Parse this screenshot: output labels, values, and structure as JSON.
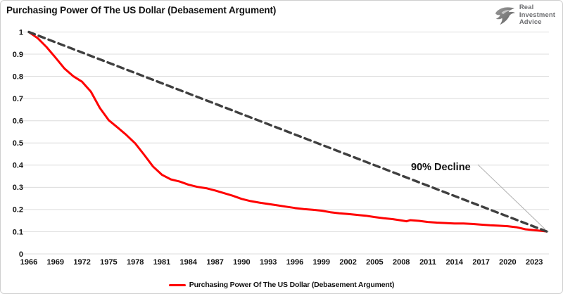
{
  "header": {
    "title": "Purchasing Power Of The US Dollar (Debasement Argument)",
    "logo_lines": [
      "Real",
      "Investment",
      "Advice"
    ]
  },
  "colors": {
    "series_red": "#ff0000",
    "dashed_gray": "#3f3f3f",
    "gridline": "#dcdcdc",
    "leader_line": "#b3b3b3",
    "text": "#111111",
    "logo_gray": "#6d6e71"
  },
  "chart_data": {
    "type": "line",
    "title": "Purchasing Power Of The US Dollar (Debasement Argument)",
    "xlabel": "",
    "ylabel": "",
    "xlim": [
      1966,
      2024.5
    ],
    "ylim": [
      0,
      1
    ],
    "grid": true,
    "x_ticks": [
      1966,
      1969,
      1972,
      1975,
      1978,
      1981,
      1984,
      1987,
      1990,
      1993,
      1996,
      1999,
      2002,
      2005,
      2008,
      2011,
      2014,
      2017,
      2020,
      2023
    ],
    "x_tick_labels": [
      "1966",
      "1969",
      "1972",
      "1975",
      "1978",
      "1981",
      "1984",
      "1987",
      "1990",
      "1993",
      "1996",
      "1999",
      "2002",
      "2005",
      "2008",
      "2011",
      "2014",
      "2017",
      "2020",
      "2023"
    ],
    "y_ticks": [
      1,
      0.9,
      0.8,
      0.7,
      0.6,
      0.5,
      0.4,
      0.3,
      0.2,
      0.1,
      0
    ],
    "y_tick_labels": [
      "1",
      "0.9",
      "0.8",
      "0.7",
      "0.6",
      "0.5",
      "0.4",
      "0.3",
      "0.2",
      "0.1",
      "0"
    ],
    "series": [
      {
        "name": "Purchasing Power Of The US Dollar (Debasement Argument)",
        "color": "#ff0000",
        "width": 3,
        "dash": null,
        "x": [
          1966,
          1967,
          1968,
          1969,
          1970,
          1971,
          1972,
          1973,
          1974,
          1975,
          1976,
          1977,
          1978,
          1979,
          1980,
          1981,
          1982,
          1983,
          1984,
          1985,
          1986,
          1987,
          1988,
          1989,
          1990,
          1991,
          1992,
          1993,
          1994,
          1995,
          1996,
          1997,
          1998,
          1999,
          2000,
          2001,
          2002,
          2003,
          2004,
          2005,
          2006,
          2007,
          2008,
          2008.6,
          2009,
          2010,
          2011,
          2012,
          2013,
          2014,
          2015,
          2016,
          2017,
          2018,
          2019,
          2020,
          2021,
          2022,
          2023,
          2024,
          2024.4
        ],
        "values": [
          1.0,
          0.972,
          0.932,
          0.885,
          0.836,
          0.801,
          0.776,
          0.731,
          0.658,
          0.603,
          0.57,
          0.536,
          0.498,
          0.447,
          0.394,
          0.357,
          0.336,
          0.326,
          0.312,
          0.302,
          0.296,
          0.286,
          0.274,
          0.262,
          0.248,
          0.238,
          0.231,
          0.225,
          0.219,
          0.213,
          0.207,
          0.202,
          0.199,
          0.195,
          0.188,
          0.183,
          0.18,
          0.176,
          0.172,
          0.166,
          0.161,
          0.157,
          0.151,
          0.147,
          0.152,
          0.149,
          0.144,
          0.141,
          0.139,
          0.137,
          0.137,
          0.135,
          0.132,
          0.129,
          0.127,
          0.125,
          0.12,
          0.111,
          0.107,
          0.103,
          0.101
        ]
      },
      {
        "name": "90% Decline reference line",
        "color": "#3f3f3f",
        "width": 3.4,
        "dash": "9 6",
        "x": [
          1966,
          2024.4
        ],
        "values": [
          1.0,
          0.101
        ]
      }
    ],
    "annotations": [
      {
        "text": "90% Decline"
      }
    ],
    "legend": {
      "position": "bottom-center",
      "items": [
        {
          "label": "Purchasing Power Of The US Dollar (Debasement Argument)",
          "color": "#ff0000"
        }
      ]
    }
  }
}
